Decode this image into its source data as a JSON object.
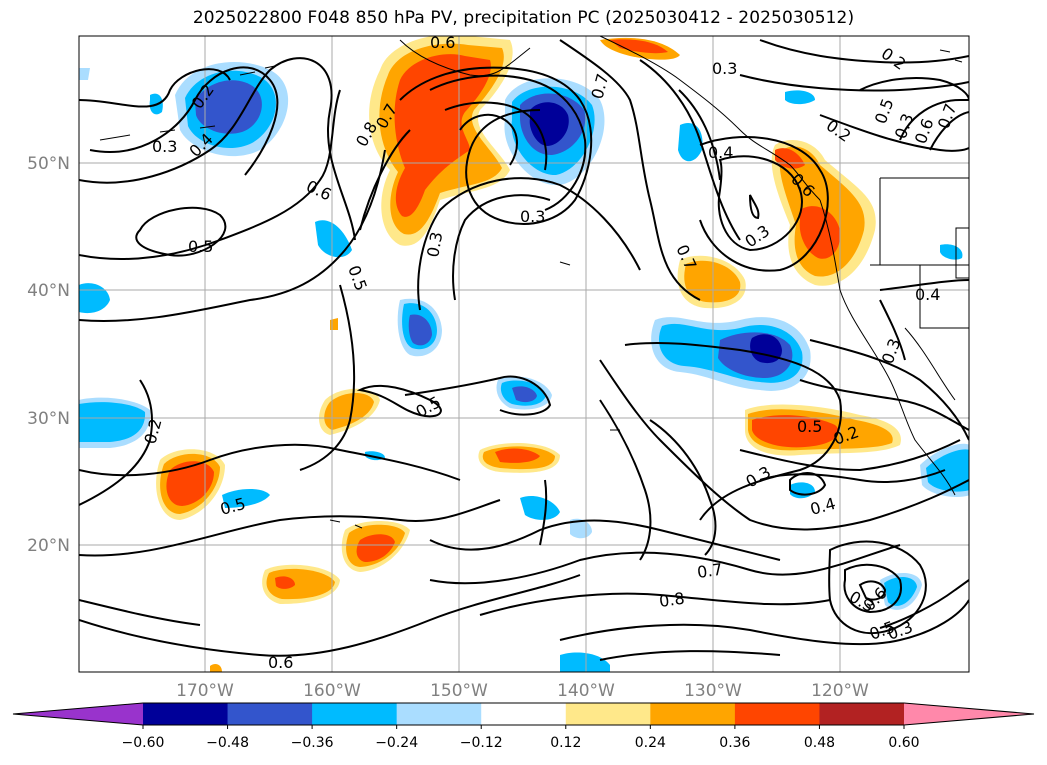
{
  "title": "2025022800 F048 850 hPa PV, precipitation PC (2025030412 - 2025030512)",
  "map": {
    "lat_labels": [
      "50°N",
      "40°N",
      "30°N",
      "20°N"
    ],
    "lon_labels": [
      "170°W",
      "160°W",
      "150°W",
      "140°W",
      "130°W",
      "120°W"
    ],
    "lat_range": [
      10,
      60
    ],
    "lon_range": [
      -180,
      -110
    ],
    "grid": true,
    "projection": "cylindrical",
    "contour_variable": "850 hPa PV",
    "contour_labels": [
      "0.2",
      "0.3",
      "0.4",
      "0.5",
      "0.6",
      "0.7",
      "0.8",
      "0.5",
      "0.3",
      "0.6",
      "0.5",
      "0.3",
      "0.2",
      "0.5",
      "0.6",
      "0.7",
      "0.3",
      "0.4",
      "0.7",
      "0.3",
      "0.2",
      "0.2",
      "0.5",
      "0.3",
      "0.6",
      "0.7",
      "0.4",
      "0.3",
      "0.6",
      "0.5",
      "0.2",
      "0.3",
      "0.4",
      "0.7",
      "0.8",
      "0.3",
      "0.6",
      "0.5",
      "0.3",
      "0.2",
      "0.2"
    ]
  },
  "colorbar": {
    "ticks": [
      "−0.60",
      "−0.48",
      "−0.36",
      "−0.24",
      "−0.12",
      "0.12",
      "0.24",
      "0.36",
      "0.48",
      "0.60"
    ],
    "colors": [
      "#9933cc",
      "#000099",
      "#3355cc",
      "#00bbff",
      "#aaddff",
      "#ffffff",
      "#ffe88a",
      "#ffa500",
      "#ff4500",
      "#b22222",
      "#ff88aa"
    ]
  }
}
